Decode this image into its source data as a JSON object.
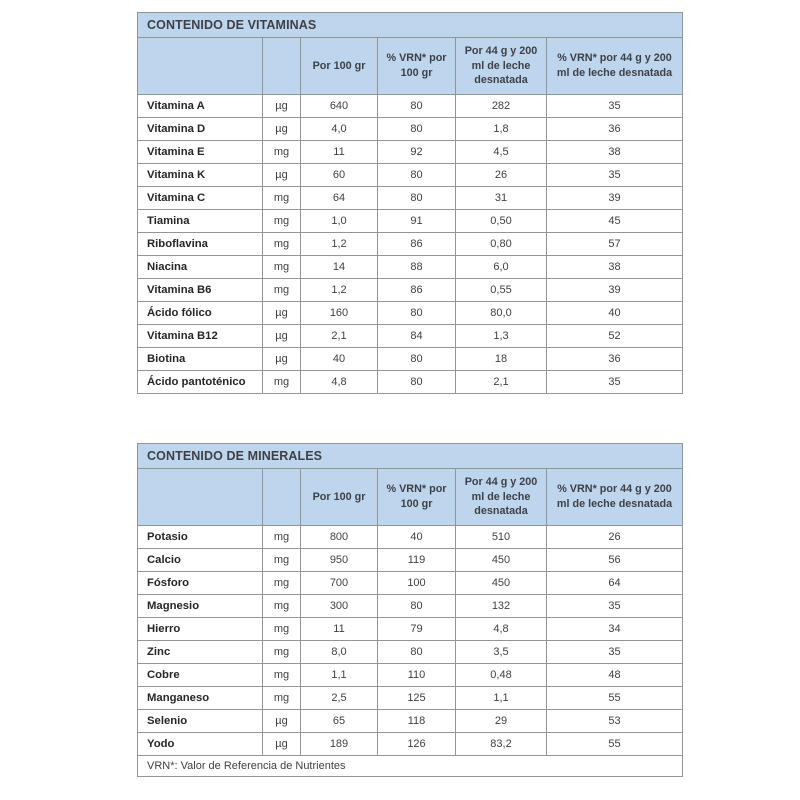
{
  "colors": {
    "header_bg": "#bdd6ee",
    "border": "#949494",
    "title_text": "#3f4046",
    "name_text": "#262626",
    "value_text": "#404040"
  },
  "columns": [
    "",
    "",
    "Por 100 gr",
    "% VRN* por 100 gr",
    "Por 44 g y 200 ml de leche desnatada",
    "% VRN* por 44 g y 200 ml de leche desnatada"
  ],
  "tables": [
    {
      "title": "CONTENIDO DE VITAMINAS",
      "rows": [
        [
          "Vitamina A",
          "µg",
          "640",
          "80",
          "282",
          "35"
        ],
        [
          "Vitamina D",
          "µg",
          "4,0",
          "80",
          "1,8",
          "36"
        ],
        [
          "Vitamina E",
          "mg",
          "11",
          "92",
          "4,5",
          "38"
        ],
        [
          "Vitamina K",
          "µg",
          "60",
          "80",
          "26",
          "35"
        ],
        [
          "Vitamina C",
          "mg",
          "64",
          "80",
          "31",
          "39"
        ],
        [
          "Tiamina",
          "mg",
          "1,0",
          "91",
          "0,50",
          "45"
        ],
        [
          "Riboflavina",
          "mg",
          "1,2",
          "86",
          "0,80",
          "57"
        ],
        [
          "Niacina",
          "mg",
          "14",
          "88",
          "6,0",
          "38"
        ],
        [
          "Vitamina B6",
          "mg",
          "1,2",
          "86",
          "0,55",
          "39"
        ],
        [
          "Ácido fólico",
          "µg",
          "160",
          "80",
          "80,0",
          "40"
        ],
        [
          "Vitamina B12",
          "µg",
          "2,1",
          "84",
          "1,3",
          "52"
        ],
        [
          "Biotina",
          "µg",
          "40",
          "80",
          "18",
          "36"
        ],
        [
          "Ácido pantoténico",
          "mg",
          "4,8",
          "80",
          "2,1",
          "35"
        ]
      ]
    },
    {
      "title": "CONTENIDO DE MINERALES",
      "rows": [
        [
          "Potasio",
          "mg",
          "800",
          "40",
          "510",
          "26"
        ],
        [
          "Calcio",
          "mg",
          "950",
          "119",
          "450",
          "56"
        ],
        [
          "Fósforo",
          "mg",
          "700",
          "100",
          "450",
          "64"
        ],
        [
          "Magnesio",
          "mg",
          "300",
          "80",
          "132",
          "35"
        ],
        [
          "Hierro",
          "mg",
          "11",
          "79",
          "4,8",
          "34"
        ],
        [
          "Zinc",
          "mg",
          "8,0",
          "80",
          "3,5",
          "35"
        ],
        [
          "Cobre",
          "mg",
          "1,1",
          "110",
          "0,48",
          "48"
        ],
        [
          "Manganeso",
          "mg",
          "2,5",
          "125",
          "1,1",
          "55"
        ],
        [
          "Selenio",
          "µg",
          "65",
          "118",
          "29",
          "53"
        ],
        [
          "Yodo",
          "µg",
          "189",
          "126",
          "83,2",
          "55"
        ]
      ],
      "footnote": "VRN*: Valor de Referencia de Nutrientes"
    }
  ]
}
